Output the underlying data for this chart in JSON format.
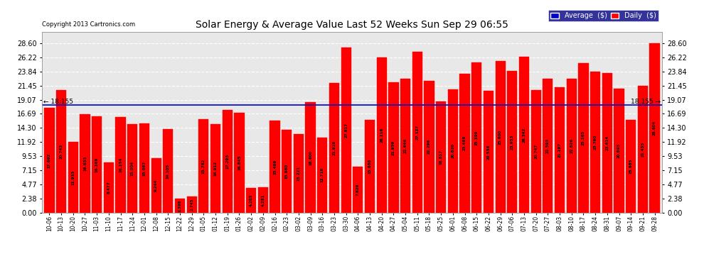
{
  "title": "Solar Energy & Average Value Last 52 Weeks Sun Sep 29 06:55",
  "copyright": "Copyright 2013 Cartronics.com",
  "average_line": 18.155,
  "bar_color": "#FF0000",
  "average_line_color": "#0000CC",
  "background_color": "#FFFFFF",
  "plot_bg_color": "#E8E8E8",
  "grid_color": "#BBBBBB",
  "yticks": [
    0.0,
    2.38,
    4.77,
    7.15,
    9.53,
    11.92,
    14.3,
    16.69,
    19.07,
    21.45,
    23.84,
    26.22,
    28.6
  ],
  "legend_avg_color": "#0000CC",
  "legend_daily_color": "#FF0000",
  "labels": [
    "10-06",
    "10-13",
    "10-20",
    "10-27",
    "11-03",
    "11-10",
    "11-17",
    "11-24",
    "12-01",
    "12-08",
    "12-15",
    "12-22",
    "12-29",
    "01-05",
    "01-12",
    "01-19",
    "01-26",
    "02-02",
    "02-09",
    "02-16",
    "02-23",
    "03-02",
    "03-09",
    "03-16",
    "03-23",
    "03-30",
    "04-06",
    "04-13",
    "04-20",
    "04-27",
    "05-04",
    "05-11",
    "05-18",
    "05-25",
    "06-01",
    "06-08",
    "06-15",
    "06-22",
    "06-29",
    "07-06",
    "07-13",
    "07-20",
    "07-27",
    "08-03",
    "08-10",
    "08-17",
    "08-24",
    "08-31",
    "09-07",
    "09-14",
    "09-21",
    "09-28"
  ],
  "values": [
    17.692,
    20.743,
    11.933,
    16.655,
    16.269,
    8.477,
    16.154,
    15.004,
    15.087,
    9.244,
    14.105,
    2.398,
    2.745,
    15.762,
    14.912,
    17.295,
    16.845,
    4.203,
    4.281,
    15.499,
    13.96,
    13.221,
    18.6,
    12.718,
    21.919,
    27.817,
    7.829,
    15.668,
    26.216,
    21.959,
    22.646,
    27.127,
    22.296,
    18.817,
    20.82,
    23.488,
    25.399,
    20.538,
    25.6,
    23.953,
    26.342,
    20.747,
    22.593,
    21.197,
    22.626,
    25.265,
    23.76,
    23.614,
    20.895,
    15.685,
    21.455,
    28.604
  ]
}
